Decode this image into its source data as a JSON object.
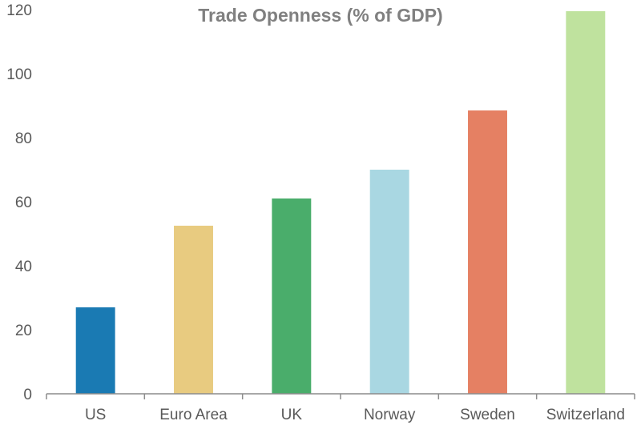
{
  "chart_data": {
    "type": "bar",
    "title": "Trade Openness (%  of GDP)",
    "xlabel": "",
    "ylabel": "",
    "categories": [
      "US",
      "Euro Area",
      "UK",
      "Norway",
      "Sweden",
      "Switzerland"
    ],
    "values": [
      27,
      52.5,
      61,
      70,
      88.5,
      119.5
    ],
    "colors": [
      "#1a7ab3",
      "#e8cb80",
      "#4aad6b",
      "#a9d7e2",
      "#e58063",
      "#bfe29e"
    ],
    "ylim": [
      0,
      120
    ],
    "yticks": [
      "0",
      "20",
      "40",
      "60",
      "80",
      "100",
      "120"
    ],
    "grid": false,
    "legend": "none"
  }
}
